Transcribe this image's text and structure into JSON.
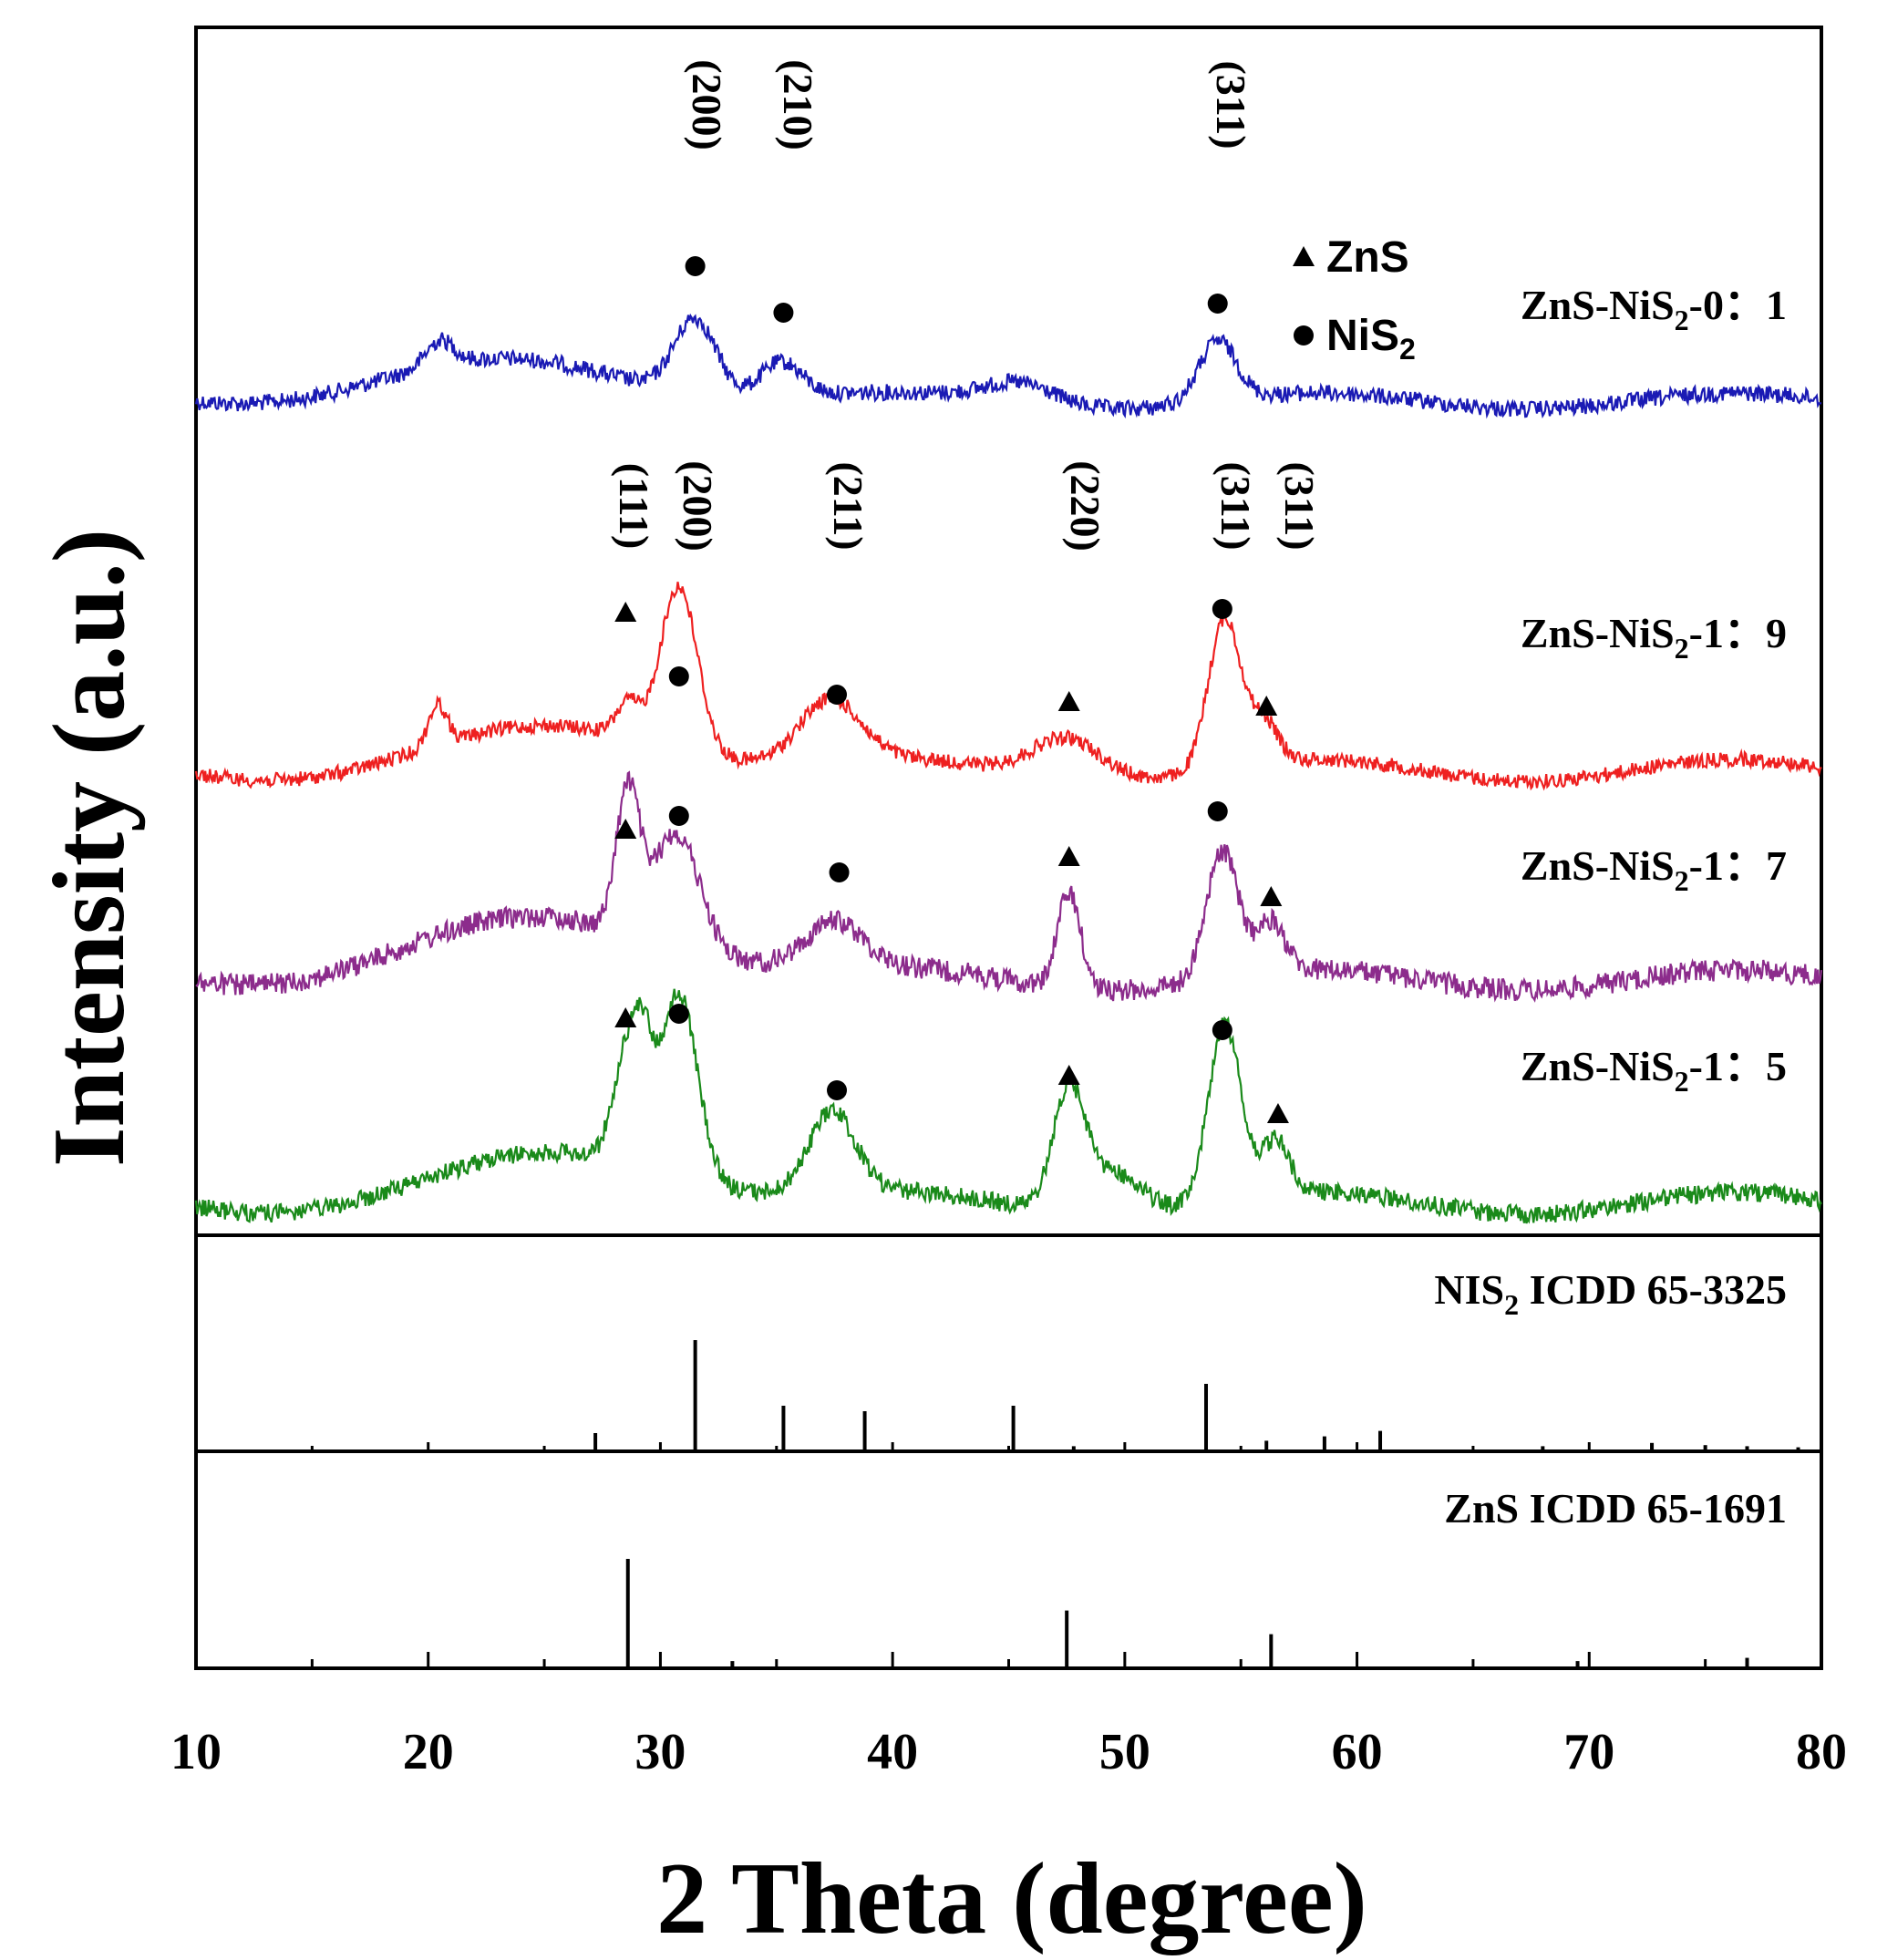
{
  "chart_data": {
    "type": "line",
    "title": "",
    "xlabel": "2 Theta (degree)",
    "ylabel": "Intensity (a.u.)",
    "xlim": [
      10,
      80
    ],
    "xticks": [
      10,
      20,
      30,
      40,
      50,
      60,
      70,
      80
    ],
    "legend": {
      "position": "top-right",
      "entries": [
        {
          "marker": "triangle",
          "label": "ZnS"
        },
        {
          "marker": "circle",
          "label": "NiS",
          "subscript": "2"
        }
      ]
    },
    "series": [
      {
        "name": "ZnS-NiS2-0:1",
        "label_main": "ZnS-NiS",
        "label_sub": "2",
        "label_tail": "-0：1",
        "color": "#1a1ab4",
        "peaks": [
          {
            "x": 20.5,
            "h": 0.25,
            "w": 0.6
          },
          {
            "x": 31.5,
            "h": 0.75,
            "w": 0.9
          },
          {
            "x": 35.2,
            "h": 0.35,
            "w": 0.9
          },
          {
            "x": 45.5,
            "h": 0.2,
            "w": 1.5
          },
          {
            "x": 54.0,
            "h": 0.6,
            "w": 0.8
          }
        ],
        "hump": {
          "x": 24,
          "h": 0.35,
          "w": 6
        },
        "hkl": [
          "(200)",
          "(210)",
          "(311)"
        ],
        "markers": [
          {
            "x": 31.5,
            "type": "circle"
          },
          {
            "x": 35.3,
            "type": "circle"
          },
          {
            "x": 54.0,
            "type": "circle"
          }
        ]
      },
      {
        "name": "ZnS-NiS2-1:9",
        "label_main": "ZnS-NiS",
        "label_sub": "2",
        "label_tail": "-1：9",
        "color": "#ee2020",
        "peaks": [
          {
            "x": 20.4,
            "h": 0.3,
            "w": 0.4
          },
          {
            "x": 28.6,
            "h": 0.25,
            "w": 0.5
          },
          {
            "x": 30.8,
            "h": 1.2,
            "w": 0.8
          },
          {
            "x": 37.3,
            "h": 0.45,
            "w": 1.3
          },
          {
            "x": 47.5,
            "h": 0.3,
            "w": 1.5
          },
          {
            "x": 54.3,
            "h": 1.1,
            "w": 0.7
          },
          {
            "x": 56.0,
            "h": 0.3,
            "w": 0.6
          }
        ],
        "hump": {
          "x": 27,
          "h": 0.3,
          "w": 5
        },
        "hkl": [
          "(111)",
          "(200)",
          "(211)",
          "(220)",
          "(311)",
          "(311)"
        ],
        "markers": [
          {
            "x": 28.5,
            "type": "triangle"
          },
          {
            "x": 30.8,
            "type": "circle"
          },
          {
            "x": 37.6,
            "type": "circle"
          },
          {
            "x": 47.6,
            "type": "triangle"
          },
          {
            "x": 54.2,
            "type": "circle"
          },
          {
            "x": 56.1,
            "type": "triangle"
          }
        ]
      },
      {
        "name": "ZnS-NiS2-1:7",
        "label_main": "ZnS-NiS",
        "label_sub": "2",
        "label_tail": "-1：7",
        "color": "#8c2c8c",
        "peaks": [
          {
            "x": 28.6,
            "h": 1.1,
            "w": 0.5
          },
          {
            "x": 30.7,
            "h": 0.9,
            "w": 1.0
          },
          {
            "x": 37.5,
            "h": 0.35,
            "w": 1.2
          },
          {
            "x": 47.6,
            "h": 0.75,
            "w": 0.5
          },
          {
            "x": 54.2,
            "h": 1.0,
            "w": 0.7
          },
          {
            "x": 56.3,
            "h": 0.4,
            "w": 0.6
          }
        ],
        "hump": {
          "x": 26,
          "h": 0.45,
          "w": 6
        },
        "hkl": [],
        "markers": [
          {
            "x": 28.5,
            "type": "triangle"
          },
          {
            "x": 30.8,
            "type": "circle"
          },
          {
            "x": 37.7,
            "type": "circle"
          },
          {
            "x": 47.6,
            "type": "triangle"
          },
          {
            "x": 54.0,
            "type": "circle"
          },
          {
            "x": 56.3,
            "type": "triangle"
          }
        ]
      },
      {
        "name": "ZnS-NiS2-1:5",
        "label_main": "ZnS-NiS",
        "label_sub": "2",
        "label_tail": "-1：5",
        "color": "#1a8a1a",
        "peaks": [
          {
            "x": 28.6,
            "h": 0.85,
            "w": 0.6
          },
          {
            "x": 29.3,
            "h": 0.5,
            "w": 0.4
          },
          {
            "x": 30.8,
            "h": 1.35,
            "w": 0.8
          },
          {
            "x": 37.4,
            "h": 0.6,
            "w": 1.0
          },
          {
            "x": 47.6,
            "h": 0.85,
            "w": 0.7
          },
          {
            "x": 49.5,
            "h": 0.3,
            "w": 1.2
          },
          {
            "x": 54.3,
            "h": 1.3,
            "w": 0.7
          },
          {
            "x": 56.5,
            "h": 0.4,
            "w": 0.6
          }
        ],
        "hump": {
          "x": 27,
          "h": 0.35,
          "w": 5
        },
        "hkl": [],
        "markers": [
          {
            "x": 28.5,
            "type": "triangle"
          },
          {
            "x": 30.8,
            "type": "circle"
          },
          {
            "x": 37.6,
            "type": "circle"
          },
          {
            "x": 47.6,
            "type": "triangle"
          },
          {
            "x": 54.2,
            "type": "circle"
          },
          {
            "x": 56.6,
            "type": "triangle"
          }
        ]
      }
    ],
    "reference_patterns": [
      {
        "name": "NIS2 ICDD 65-3325",
        "label_main": "NIS",
        "label_sub": "2",
        "label_tail": " ICDD 65-3325",
        "lines": [
          {
            "x": 27.2,
            "h": 0.15
          },
          {
            "x": 31.5,
            "h": 1.0
          },
          {
            "x": 35.3,
            "h": 0.4
          },
          {
            "x": 38.8,
            "h": 0.35
          },
          {
            "x": 45.2,
            "h": 0.4
          },
          {
            "x": 47.8,
            "h": 0.03
          },
          {
            "x": 53.5,
            "h": 0.6
          },
          {
            "x": 56.1,
            "h": 0.08
          },
          {
            "x": 58.6,
            "h": 0.12
          },
          {
            "x": 61.0,
            "h": 0.17
          },
          {
            "x": 68.0,
            "h": 0.03
          },
          {
            "x": 72.7,
            "h": 0.06
          },
          {
            "x": 75.0,
            "h": 0.04
          },
          {
            "x": 76.8,
            "h": 0.03
          },
          {
            "x": 79.0,
            "h": 0.02
          }
        ]
      },
      {
        "name": "ZnS ICDD 65-1691",
        "label_main": "ZnS ICDD 65-1691",
        "label_sub": "",
        "label_tail": "",
        "lines": [
          {
            "x": 28.6,
            "h": 1.0
          },
          {
            "x": 33.1,
            "h": 0.05
          },
          {
            "x": 47.5,
            "h": 0.52
          },
          {
            "x": 56.3,
            "h": 0.3
          },
          {
            "x": 69.5,
            "h": 0.05
          },
          {
            "x": 76.8,
            "h": 0.08
          }
        ]
      }
    ],
    "hkl_labels_top": [
      "(200)",
      "(210)",
      "(311)"
    ],
    "hkl_labels_mid": [
      "(111)",
      "(200)",
      "(211)",
      "(220)",
      "(311)",
      "(311)"
    ]
  }
}
